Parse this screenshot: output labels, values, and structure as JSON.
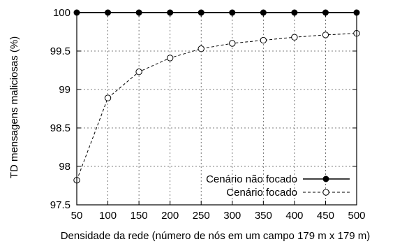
{
  "chart_data": {
    "type": "line",
    "title": "",
    "xlabel": "Densidade da rede (número de nós em um campo 179 m x 179 m)",
    "ylabel": "TD mensagens maliciosas (%)",
    "x": [
      50,
      100,
      150,
      200,
      250,
      300,
      350,
      400,
      450,
      500
    ],
    "x_tick_labels": [
      "50",
      "100",
      "150",
      "200",
      "250",
      "300",
      "350",
      "400",
      "450",
      "500"
    ],
    "y_tick_labels": [
      "97.5",
      "98",
      "98.5",
      "99",
      "99.5",
      "100"
    ],
    "y_ticks": [
      97.5,
      98,
      98.5,
      99,
      99.5,
      100
    ],
    "xlim": [
      50,
      500
    ],
    "ylim": [
      97.5,
      100
    ],
    "grid": true,
    "legend_position": "bottom-right",
    "series": [
      {
        "name": "Cenário não focado",
        "values": [
          100,
          100,
          100,
          100,
          100,
          100,
          100,
          100,
          100,
          100
        ],
        "line_style": "solid",
        "marker": "filled-circle",
        "color": "#000000"
      },
      {
        "name": "Cenário focado",
        "values": [
          97.82,
          98.89,
          99.23,
          99.41,
          99.53,
          99.6,
          99.64,
          99.68,
          99.71,
          99.73
        ],
        "line_style": "dashed",
        "marker": "open-circle",
        "color": "#000000"
      }
    ]
  }
}
